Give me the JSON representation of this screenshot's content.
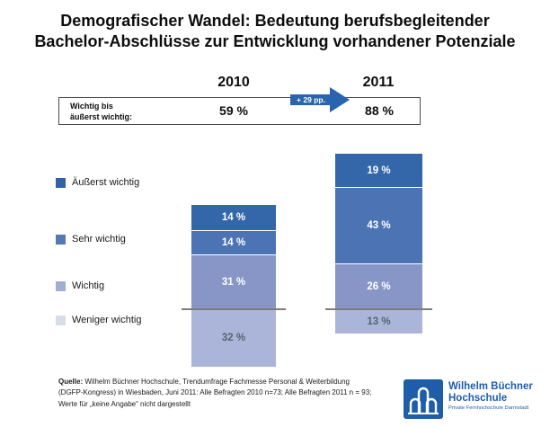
{
  "title": {
    "line1": "Demografischer Wandel: Bedeutung berufsbegleitender",
    "line2": "Bachelor-Abschlüsse zur Entwicklung vorhandener Potenziale"
  },
  "columns": {
    "left_year": "2010",
    "right_year": "2011"
  },
  "summary_box": {
    "label_line1": "Wichtig bis",
    "label_line2": "äußerst wichtig:",
    "left_value": "59 %",
    "right_value": "88 %",
    "arrow_label": "+ 29 pp.",
    "arrow_color": "#2A64AE"
  },
  "legend": {
    "items": [
      {
        "label": "Äußerst wichtig",
        "color": "#2F63A6"
      },
      {
        "label": "Sehr wichtig",
        "color": "#5578B6"
      },
      {
        "label": "Wichtig",
        "color": "#A0AED1"
      },
      {
        "label": "Weniger wichtig",
        "color": "#D9DCE9"
      }
    ]
  },
  "chart_data": {
    "type": "bar",
    "subtype": "stacked_column_with_baseline",
    "title": "Demografischer Wandel: Bedeutung berufsbegleitender Bachelor-Abschlüsse zur Entwicklung vorhandener Potenziale",
    "categories": [
      "2010",
      "2011"
    ],
    "series": [
      {
        "name": "Äußerst wichtig",
        "values": [
          14,
          19
        ],
        "color": "#3367A9",
        "label_color": "#ffffff"
      },
      {
        "name": "Sehr wichtig",
        "values": [
          14,
          43
        ],
        "color": "#4C74B4",
        "label_color": "#ffffff"
      },
      {
        "name": "Wichtig",
        "values": [
          31,
          26
        ],
        "color": "#8796C7",
        "label_color": "#ffffff"
      },
      {
        "name": "Weniger wichtig",
        "values": [
          32,
          13
        ],
        "color": "#ABB5D9",
        "label_color": "#596270",
        "below_baseline": true
      }
    ],
    "value_suffix": " %",
    "totals_above_baseline": [
      59,
      88
    ],
    "change_annotation": "+ 29 pp.",
    "legend_position": "left",
    "grid": false,
    "note": "Segment 'Weniger wichtig' wird unterhalb einer grauen Basislinie dargestellt"
  },
  "footer": {
    "label": "Quelle:",
    "line1_rest": " Wilhelm Büchner Hochschule, Trendumfrage Fachmesse Personal & Weiterbildung",
    "line2": "(DGFP-Kongress) in Wiesbaden, Juni 2011: Alle Befragten 2010 n=73; Alle Befragten 2011 n = 93;",
    "line3": "Werte für „keine Angabe“ nicht dargestellt"
  },
  "logo": {
    "name_line1": "Wilhelm Büchner",
    "name_line2": "Hochschule",
    "subtitle": "Private Fernhochschule Darmstadt",
    "color": "#1E5EA8"
  }
}
